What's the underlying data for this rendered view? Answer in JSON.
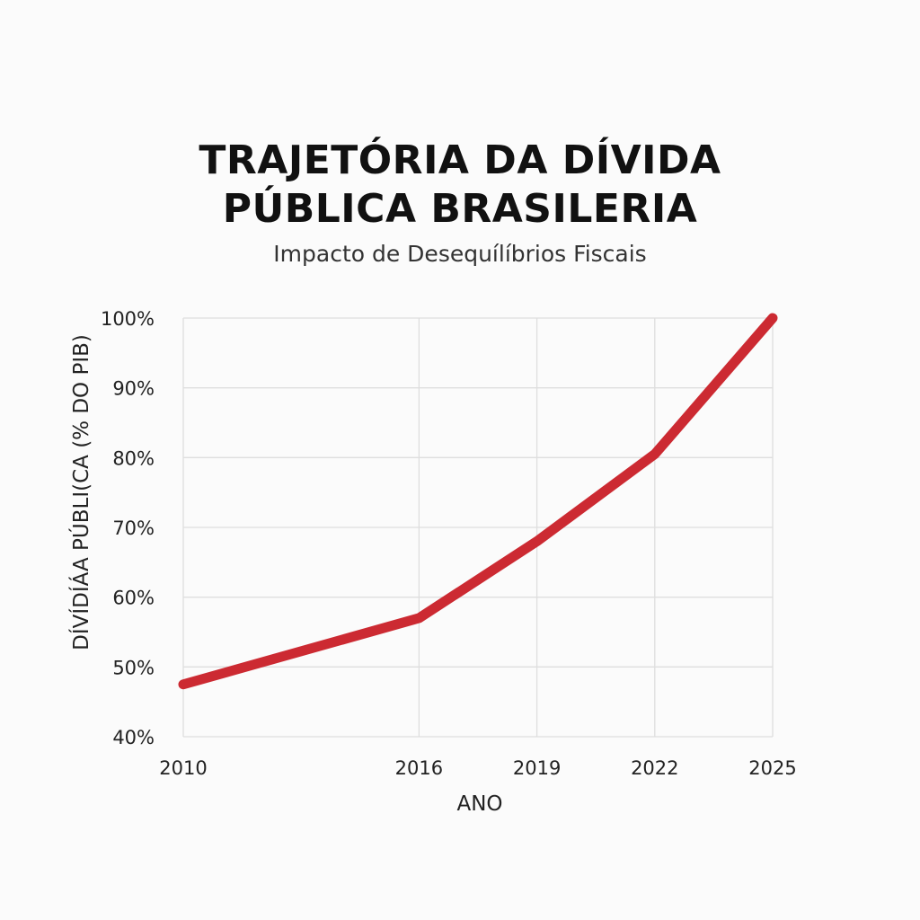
{
  "chart_data": {
    "type": "line",
    "title_lines": [
      "TRAJETÓRIA DA DÍVIDA",
      "PÚBLICA BRASILERIA"
    ],
    "subtitle": "Impacto de Desequílíbrios Fiscais",
    "xlabel": "ANO",
    "ylabel": "DÍVÍDÍÁA PÚBLI(CA (% DO PIB)",
    "x": [
      2010,
      2016,
      2019,
      2022,
      2025
    ],
    "x_tick_labels": [
      "2010",
      "2016",
      "2019",
      "2022",
      "2025"
    ],
    "y_tick_labels": [
      "100%",
      "90%",
      "80%",
      "70%",
      "60%",
      "50%",
      "40%"
    ],
    "y_ticks": [
      100,
      90,
      80,
      70,
      60,
      50,
      40
    ],
    "ylim": [
      40,
      100
    ],
    "grid": true,
    "series": [
      {
        "values": [
          47.5,
          57,
          68,
          80.5,
          100
        ],
        "color": "#cc2a32"
      }
    ]
  }
}
